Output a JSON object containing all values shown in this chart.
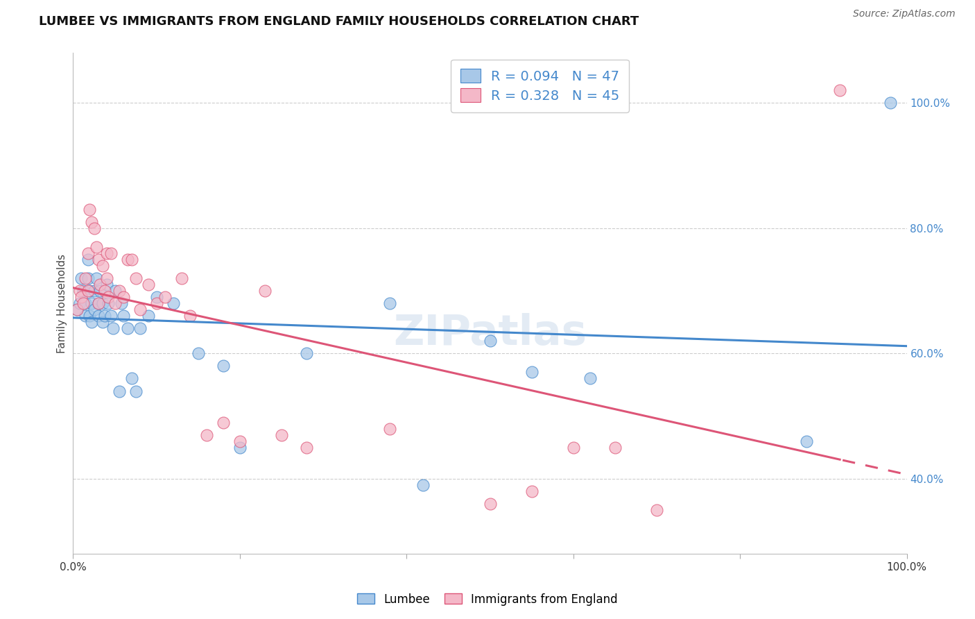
{
  "title": "LUMBEE VS IMMIGRANTS FROM ENGLAND FAMILY HOUSEHOLDS CORRELATION CHART",
  "source": "Source: ZipAtlas.com",
  "ylabel": "Family Households",
  "legend_label_1": "Lumbee",
  "legend_label_2": "Immigrants from England",
  "R1": 0.094,
  "N1": 47,
  "R2": 0.328,
  "N2": 45,
  "color_blue_fill": "#a8c8e8",
  "color_pink_fill": "#f4b8c8",
  "color_blue_line": "#4488cc",
  "color_pink_line": "#dd5577",
  "background": "#ffffff",
  "grid_color": "#cccccc",
  "lumbee_x": [
    0.005,
    0.008,
    0.01,
    0.012,
    0.015,
    0.015,
    0.018,
    0.018,
    0.02,
    0.02,
    0.022,
    0.022,
    0.025,
    0.025,
    0.028,
    0.03,
    0.03,
    0.032,
    0.035,
    0.035,
    0.038,
    0.04,
    0.042,
    0.045,
    0.048,
    0.05,
    0.055,
    0.058,
    0.06,
    0.065,
    0.07,
    0.075,
    0.08,
    0.09,
    0.1,
    0.12,
    0.15,
    0.18,
    0.2,
    0.28,
    0.38,
    0.42,
    0.5,
    0.55,
    0.62,
    0.88,
    0.98
  ],
  "lumbee_y": [
    0.67,
    0.68,
    0.72,
    0.7,
    0.68,
    0.66,
    0.75,
    0.72,
    0.7,
    0.66,
    0.68,
    0.65,
    0.7,
    0.67,
    0.72,
    0.68,
    0.66,
    0.7,
    0.68,
    0.65,
    0.66,
    0.71,
    0.68,
    0.66,
    0.64,
    0.7,
    0.54,
    0.68,
    0.66,
    0.64,
    0.56,
    0.54,
    0.64,
    0.66,
    0.69,
    0.68,
    0.6,
    0.58,
    0.45,
    0.6,
    0.68,
    0.39,
    0.62,
    0.57,
    0.56,
    0.46,
    1.0
  ],
  "england_x": [
    0.005,
    0.008,
    0.01,
    0.012,
    0.015,
    0.018,
    0.018,
    0.02,
    0.022,
    0.025,
    0.028,
    0.03,
    0.03,
    0.032,
    0.035,
    0.038,
    0.04,
    0.04,
    0.042,
    0.045,
    0.05,
    0.055,
    0.06,
    0.065,
    0.07,
    0.075,
    0.08,
    0.09,
    0.1,
    0.11,
    0.13,
    0.14,
    0.16,
    0.18,
    0.2,
    0.23,
    0.25,
    0.28,
    0.38,
    0.5,
    0.55,
    0.6,
    0.65,
    0.7,
    0.92
  ],
  "england_y": [
    0.67,
    0.7,
    0.69,
    0.68,
    0.72,
    0.7,
    0.76,
    0.83,
    0.81,
    0.8,
    0.77,
    0.75,
    0.68,
    0.71,
    0.74,
    0.7,
    0.76,
    0.72,
    0.69,
    0.76,
    0.68,
    0.7,
    0.69,
    0.75,
    0.75,
    0.72,
    0.67,
    0.71,
    0.68,
    0.69,
    0.72,
    0.66,
    0.47,
    0.49,
    0.46,
    0.7,
    0.47,
    0.45,
    0.48,
    0.36,
    0.38,
    0.45,
    0.45,
    0.35,
    1.02
  ],
  "ylim_min": 0.28,
  "ylim_max": 1.08,
  "yticks": [
    0.4,
    0.6,
    0.8,
    1.0
  ]
}
